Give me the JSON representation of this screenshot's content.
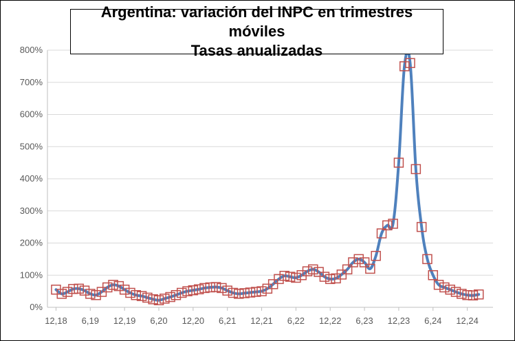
{
  "chart_data": {
    "type": "line",
    "title": "Argentina: variación del INPC en trimestres móviles",
    "subtitle": "Tasas anualizadas",
    "xlabel": "",
    "ylabel": "",
    "ylim": [
      0,
      800
    ],
    "y_ticks": [
      "0%",
      "100%",
      "200%",
      "300%",
      "400%",
      "500%",
      "600%",
      "700%",
      "800%"
    ],
    "y_tick_values": [
      0,
      100,
      200,
      300,
      400,
      500,
      600,
      700,
      800
    ],
    "x_ticks": [
      "12,18",
      "6,19",
      "12,19",
      "6,20",
      "12,20",
      "6,21",
      "12,21",
      "6,22",
      "12,22",
      "6,23",
      "12,23",
      "6,24",
      "12,24"
    ],
    "x_tick_months": [
      0,
      6,
      12,
      18,
      24,
      30,
      36,
      42,
      48,
      54,
      60,
      66,
      72
    ],
    "grid": "horizontal",
    "legend": "none",
    "line_color": "#4f81bd",
    "marker_color": "#c0504d",
    "series": [
      {
        "x_months": [
          0,
          1,
          2,
          3,
          4,
          5,
          6,
          7,
          8,
          9,
          10,
          11,
          12,
          13,
          14,
          15,
          16,
          17,
          18,
          19,
          20,
          21,
          22,
          23,
          24,
          25,
          26,
          27,
          28,
          29,
          30,
          31,
          32,
          33,
          34,
          35,
          36,
          37,
          38,
          39,
          40,
          41,
          42,
          43,
          44,
          45,
          46,
          47,
          48,
          49,
          50,
          51,
          52,
          53,
          54,
          55,
          56,
          57,
          58,
          59,
          60,
          61,
          62,
          63,
          64,
          65,
          66,
          67,
          68,
          69,
          70,
          71,
          72,
          73,
          74
        ],
        "values": [
          55,
          42,
          48,
          57,
          58,
          52,
          42,
          38,
          48,
          62,
          70,
          66,
          55,
          45,
          38,
          35,
          30,
          25,
          22,
          27,
          32,
          38,
          45,
          50,
          53,
          56,
          60,
          62,
          63,
          60,
          52,
          45,
          42,
          44,
          46,
          48,
          50,
          58,
          72,
          88,
          98,
          95,
          92,
          100,
          112,
          118,
          110,
          95,
          88,
          90,
          102,
          118,
          140,
          150,
          140,
          120,
          160,
          230,
          255,
          260,
          450,
          750,
          760,
          430,
          250,
          150,
          100,
          70,
          62,
          55,
          48,
          42,
          38,
          37,
          40
        ]
      }
    ]
  }
}
